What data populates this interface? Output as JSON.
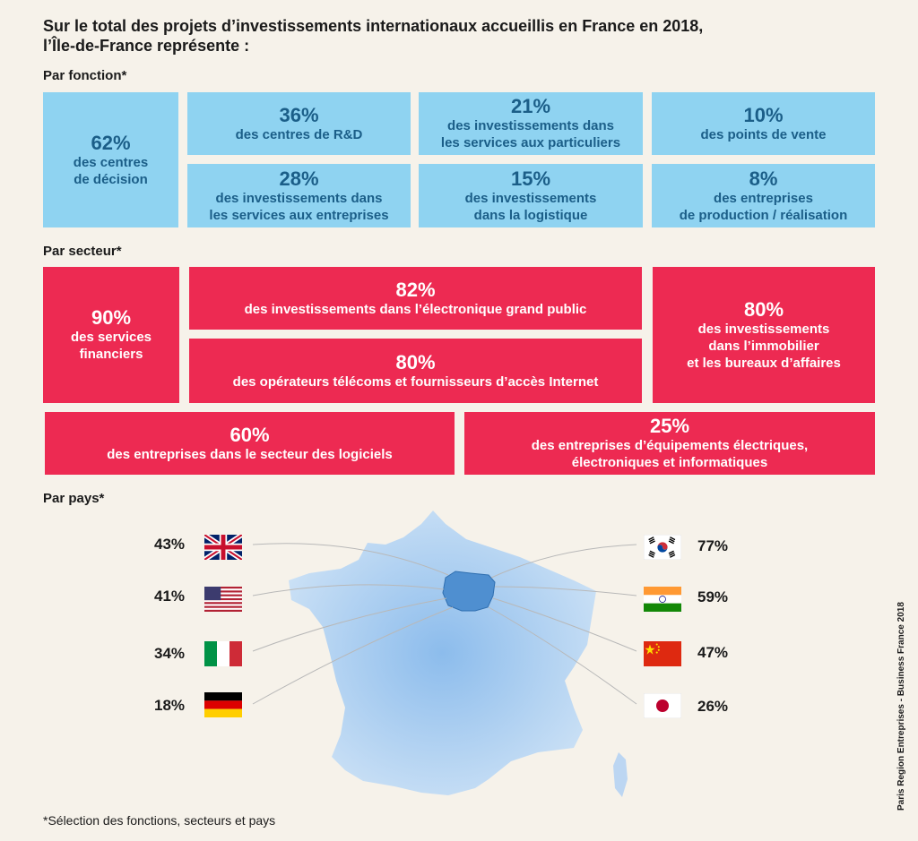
{
  "title_line1": "Sur le total des projets d’investissements internationaux accueillis en France en 2018,",
  "title_line2": "l’Île-de-France représente :",
  "fonction": {
    "label": "Par fonction*",
    "items": [
      {
        "pct": "62%",
        "line1": "des centres",
        "line2": "de décision"
      },
      {
        "pct": "36%",
        "line1": "des centres de R&D",
        "line2": ""
      },
      {
        "pct": "21%",
        "line1": "des investissements dans",
        "line2": "les services aux particuliers"
      },
      {
        "pct": "10%",
        "line1": "des points de vente",
        "line2": ""
      },
      {
        "pct": "28%",
        "line1": "des investissements dans",
        "line2": "les services aux entreprises"
      },
      {
        "pct": "15%",
        "line1": "des investissements",
        "line2": "dans la logistique"
      },
      {
        "pct": "8%",
        "line1": "des entreprises",
        "line2": "de production / réalisation"
      }
    ]
  },
  "secteur": {
    "label": "Par secteur*",
    "items": [
      {
        "pct": "90%",
        "line1": "des services",
        "line2": "financiers",
        "line3": ""
      },
      {
        "pct": "82%",
        "line1": "des investissements dans l’électronique grand public",
        "line2": "",
        "line3": ""
      },
      {
        "pct": "80%",
        "line1": "des opérateurs télécoms et fournisseurs d’accès Internet",
        "line2": "",
        "line3": ""
      },
      {
        "pct": "80%",
        "line1": "des investissements",
        "line2": "dans l’immobilier",
        "line3": "et les bureaux d’affaires"
      },
      {
        "pct": "60%",
        "line1": "des entreprises dans le secteur des logiciels",
        "line2": "",
        "line3": ""
      },
      {
        "pct": "25%",
        "line1": "des entreprises d’équipements électriques,",
        "line2": "électroniques et informatiques",
        "line3": ""
      }
    ]
  },
  "pays": {
    "label": "Par pays*",
    "left": [
      {
        "pct": "43%",
        "flag": "uk-flag-icon"
      },
      {
        "pct": "41%",
        "flag": "us-flag-icon"
      },
      {
        "pct": "34%",
        "flag": "italy-flag-icon"
      },
      {
        "pct": "18%",
        "flag": "germany-flag-icon"
      }
    ],
    "right": [
      {
        "pct": "77%",
        "flag": "south-korea-flag-icon"
      },
      {
        "pct": "59%",
        "flag": "india-flag-icon"
      },
      {
        "pct": "47%",
        "flag": "china-flag-icon"
      },
      {
        "pct": "26%",
        "flag": "japan-flag-icon"
      }
    ]
  },
  "colors": {
    "background": "#f6f2ea",
    "fonction_box": "#8fd3f1",
    "fonction_text": "#1b5e88",
    "secteur_box": "#ed2a52",
    "map": "#a7cdf0",
    "idf": "#4f8fd0"
  },
  "footnote": "*Sélection des fonctions, secteurs et pays",
  "source": "Paris Region Entreprises - Business France 2018"
}
